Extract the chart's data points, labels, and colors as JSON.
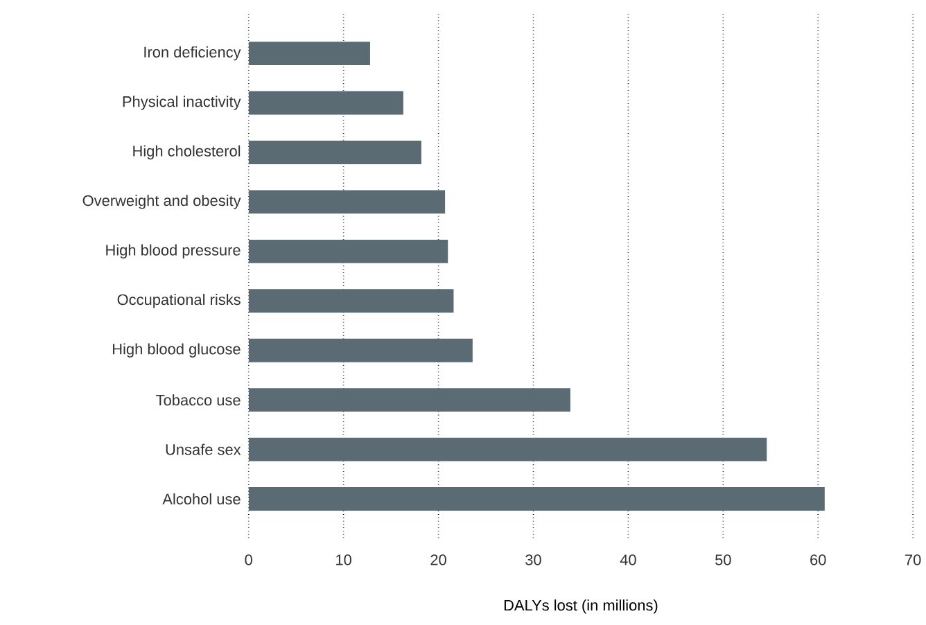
{
  "chart_data": {
    "type": "bar",
    "orientation": "horizontal",
    "xlabel": "DALYs lost (in millions)",
    "categories": [
      "Iron deficiency",
      "Physical inactivity",
      "High cholesterol",
      "Overweight and obesity",
      "High blood pressure",
      "Occupational risks",
      "High blood glucose",
      "Tobacco use",
      "Unsafe sex",
      "Alcohol use"
    ],
    "values": [
      12.8,
      16.3,
      18.2,
      20.7,
      21.0,
      21.6,
      23.6,
      33.9,
      54.6,
      60.7
    ],
    "color": "#5b6b74",
    "xlim": [
      0,
      70
    ],
    "xticks": [
      0,
      10,
      20,
      30,
      40,
      50,
      60,
      70
    ],
    "grid": "x"
  }
}
